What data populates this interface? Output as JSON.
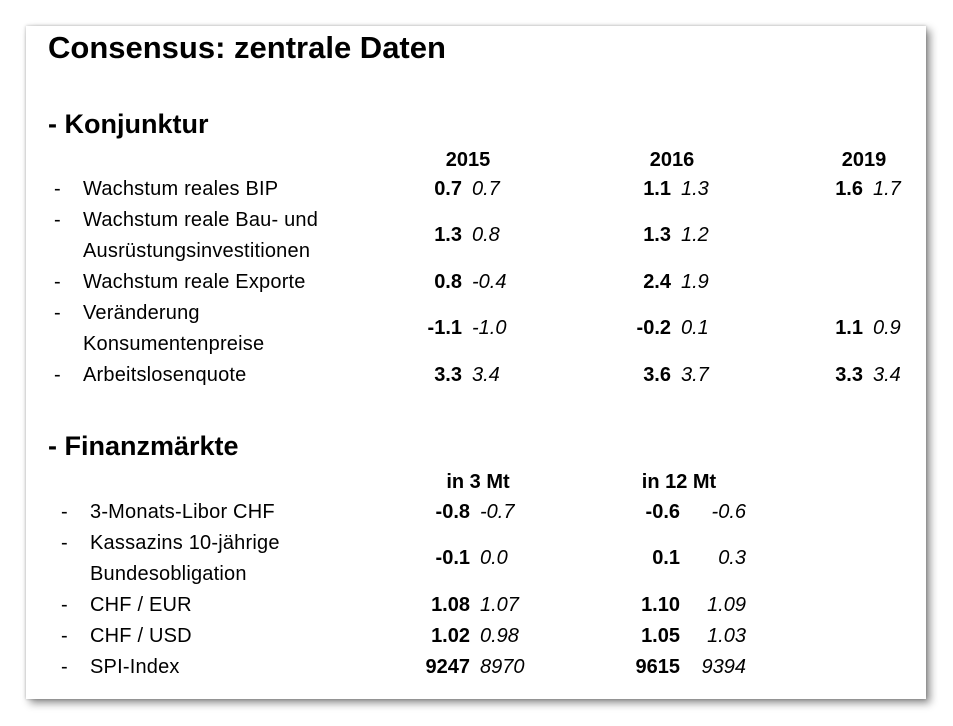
{
  "title": "Consensus: zentrale Daten",
  "konjunktur": {
    "heading": "- Konjunktur",
    "years": [
      "2015",
      "2016",
      "2019"
    ],
    "rows": [
      {
        "label": [
          "Wachstum reales BIP"
        ],
        "v2015": [
          "0.7",
          "0.7"
        ],
        "v2016": [
          "1.1",
          "1.3"
        ],
        "v2019": [
          "1.6",
          "1.7"
        ]
      },
      {
        "label": [
          "Wachstum reale Bau- und",
          "Ausrüstungsinvestitionen"
        ],
        "v2015": [
          "1.3",
          "0.8"
        ],
        "v2016": [
          "1.3",
          "1.2"
        ],
        "v2019": [
          "",
          ""
        ]
      },
      {
        "label": [
          "Wachstum reale Exporte"
        ],
        "v2015": [
          "0.8",
          "-0.4"
        ],
        "v2016": [
          "2.4",
          "1.9"
        ],
        "v2019": [
          "",
          ""
        ]
      },
      {
        "label": [
          "Veränderung",
          "Konsumentenpreise"
        ],
        "v2015": [
          "-1.1",
          "-1.0"
        ],
        "v2016": [
          "-0.2",
          "0.1"
        ],
        "v2019": [
          "1.1",
          "0.9"
        ]
      },
      {
        "label": [
          "Arbeitslosenquote"
        ],
        "v2015": [
          "3.3",
          "3.4"
        ],
        "v2016": [
          "3.6",
          "3.7"
        ],
        "v2019": [
          "3.3",
          "3.4"
        ]
      }
    ]
  },
  "finanz": {
    "heading": "- Finanzmärkte",
    "cols": [
      "in 3 Mt",
      "in 12 Mt"
    ],
    "rows": [
      {
        "label": [
          "3-Monats-Libor CHF"
        ],
        "m3": [
          "-0.8",
          "-0.7"
        ],
        "m12": [
          "-0.6",
          "-0.6"
        ]
      },
      {
        "label": [
          "Kassazins 10-jährige",
          "Bundesobligation"
        ],
        "m3": [
          "-0.1",
          "0.0"
        ],
        "m12": [
          "0.1",
          "0.3"
        ]
      },
      {
        "label": [
          "CHF / EUR"
        ],
        "m3": [
          "1.08",
          "1.07"
        ],
        "m12": [
          "1.10",
          "1.09"
        ]
      },
      {
        "label": [
          "CHF / USD"
        ],
        "m3": [
          "1.02",
          "0.98"
        ],
        "m12": [
          "1.05",
          "1.03"
        ]
      },
      {
        "label": [
          "SPI-Index"
        ],
        "m3": [
          "9247",
          "8970"
        ],
        "m12": [
          "9615",
          "9394"
        ]
      }
    ]
  }
}
